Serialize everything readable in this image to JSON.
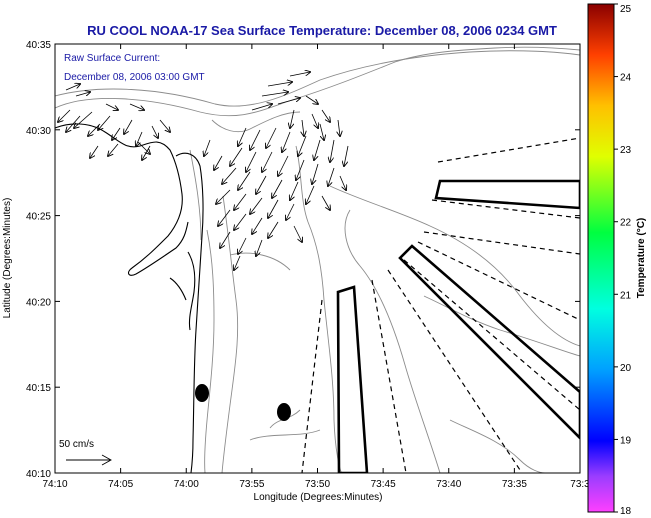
{
  "title": "RU COOL  NOAA-17  Sea Surface Temperature:  December 08, 2006 0234 GMT",
  "annotation": {
    "line1": "Raw Surface Current:",
    "line2": "December 08, 2006 03:00 GMT"
  },
  "axes": {
    "xlabel": "Longitude (Degrees:Minutes)",
    "ylabel": "Latitude (Degrees:Minutes)",
    "x_ticks": [
      "74:10",
      "74:05",
      "74:00",
      "73:55",
      "73:50",
      "73:45",
      "73:40",
      "73:35",
      "73:3"
    ],
    "y_ticks": [
      "40:35",
      "40:30",
      "40:25",
      "40:20",
      "40:15",
      "40:10"
    ]
  },
  "colorbar": {
    "label": "Temperature (°C)",
    "ticks": [
      "25",
      "24",
      "23",
      "22",
      "21",
      "20",
      "19",
      "18"
    ],
    "range": [
      18,
      25
    ]
  },
  "scale_arrow": {
    "label": "50 cm/s"
  },
  "colors": {
    "title": "#1a1aa6",
    "annotation": "#1a1aa6",
    "bathymetry": "#8c8c8c",
    "coastline": "#000000"
  }
}
